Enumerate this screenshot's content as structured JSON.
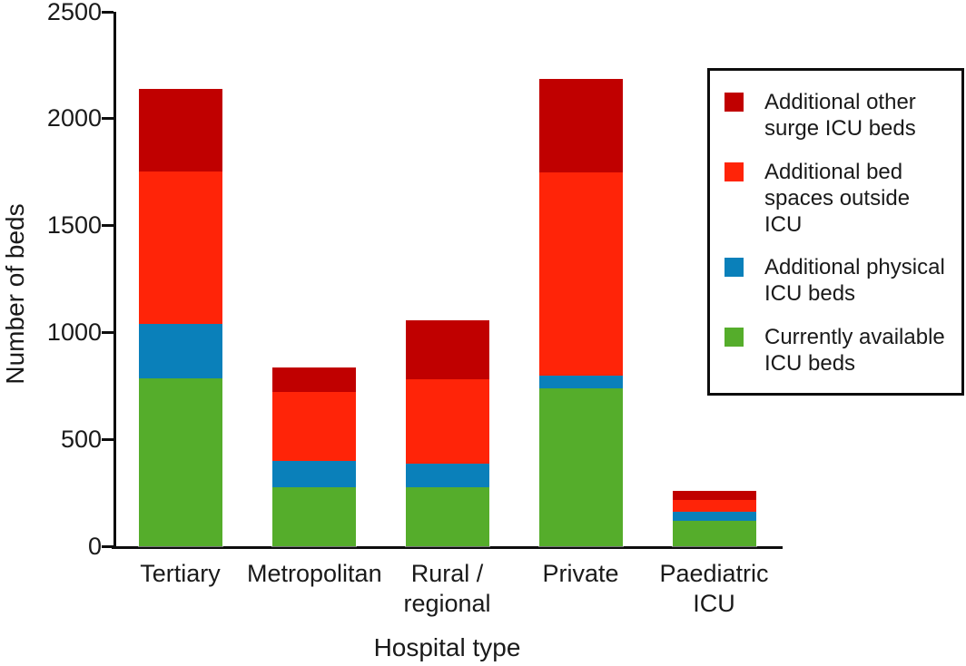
{
  "chart_data": {
    "type": "bar",
    "stacked": true,
    "title": "",
    "xlabel": "Hospital type",
    "ylabel": "Number of beds",
    "ylim": [
      0,
      2500
    ],
    "yticks": [
      0,
      500,
      1000,
      1500,
      2000,
      2500
    ],
    "grid": false,
    "categories": [
      "Tertiary",
      "Metropolitan",
      "Rural / regional",
      "Private",
      "Paediatric ICU"
    ],
    "category_label_lines": [
      [
        "Tertiary"
      ],
      [
        "Metropolitan"
      ],
      [
        "Rural /",
        "regional"
      ],
      [
        "Private"
      ],
      [
        "Paediatric ICU"
      ]
    ],
    "series": [
      {
        "name": "Currently available ICU beds",
        "color": "#55ad2b",
        "values": [
          785,
          275,
          275,
          740,
          120
        ]
      },
      {
        "name": "Additional physical ICU beds",
        "color": "#0a80ba",
        "values": [
          255,
          125,
          110,
          60,
          40
        ]
      },
      {
        "name": "Additional bed spaces outside ICU",
        "color": "#ff2408",
        "values": [
          715,
          320,
          395,
          950,
          55
        ]
      },
      {
        "name": "Additional other surge ICU beds",
        "color": "#c00000",
        "values": [
          385,
          115,
          275,
          435,
          45
        ]
      }
    ],
    "bar_totals": [
      2140,
      835,
      1055,
      2185,
      260
    ],
    "legend": {
      "position": "upper right",
      "entries": [
        {
          "label_lines": [
            "Additional other",
            "surge ICU beds"
          ],
          "color": "#c00000"
        },
        {
          "label_lines": [
            "Additional bed",
            "spaces outside ICU"
          ],
          "color": "#ff2408"
        },
        {
          "label_lines": [
            "Additional physical",
            "ICU beds"
          ],
          "color": "#0a80ba"
        },
        {
          "label_lines": [
            "Currently available",
            "ICU beds"
          ],
          "color": "#55ad2b"
        }
      ]
    },
    "axis_color": "#0d0d0d",
    "text_color": "#1a1a1a"
  }
}
